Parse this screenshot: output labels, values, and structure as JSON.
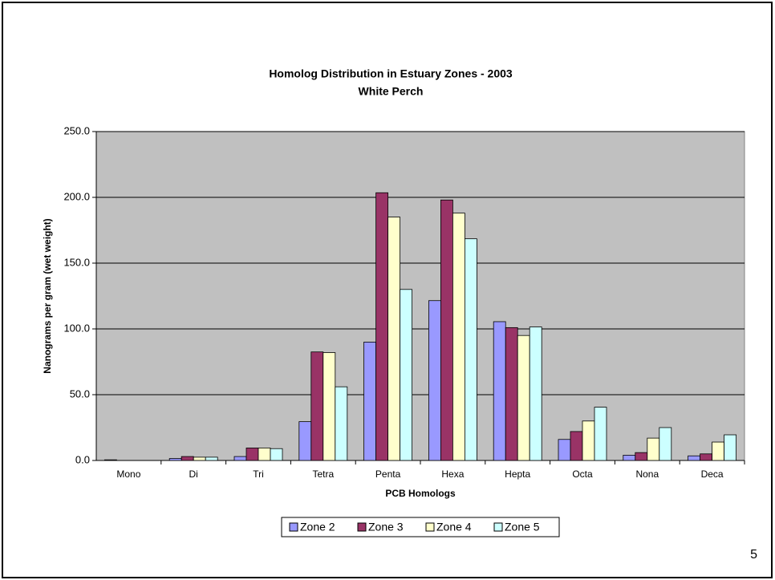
{
  "chart_data": {
    "type": "bar",
    "title": "Homolog Distribution in Estuary Zones - 2003",
    "subtitle": "White Perch",
    "x_label": "PCB Homologs",
    "y_label": "Nanograms per gram (wet weight)",
    "categories": [
      "Mono",
      "Di",
      "Tri",
      "Tetra",
      "Penta",
      "Hexa",
      "Hepta",
      "Octa",
      "Nona",
      "Deca"
    ],
    "series": [
      {
        "name": "Zone 2",
        "color": "#9999ff",
        "values": [
          0.5,
          1.5,
          3,
          29.5,
          90,
          121.5,
          105.5,
          16,
          4,
          3.5
        ]
      },
      {
        "name": "Zone 3",
        "color": "#993366",
        "values": [
          0,
          3,
          9.5,
          82.5,
          203.5,
          198,
          101,
          22,
          6,
          5
        ]
      },
      {
        "name": "Zone 4",
        "color": "#ffffcc",
        "values": [
          0,
          2.5,
          9.5,
          82,
          185,
          188,
          95,
          30,
          17,
          14
        ]
      },
      {
        "name": "Zone 5",
        "color": "#ccffff",
        "values": [
          0,
          2.5,
          9,
          56,
          130,
          168.5,
          101.5,
          40.5,
          25,
          19.5
        ]
      }
    ],
    "ylim": [
      0,
      250
    ],
    "yticks": [
      {
        "value": 0,
        "label": "0.0"
      },
      {
        "value": 50,
        "label": "50.0"
      },
      {
        "value": 100,
        "label": "100.0"
      },
      {
        "value": 150,
        "label": "150.0"
      },
      {
        "value": 200,
        "label": "200.0"
      },
      {
        "value": 250,
        "label": "250.0"
      }
    ],
    "grid": true,
    "legend": "bottom"
  },
  "slide_number": 5
}
